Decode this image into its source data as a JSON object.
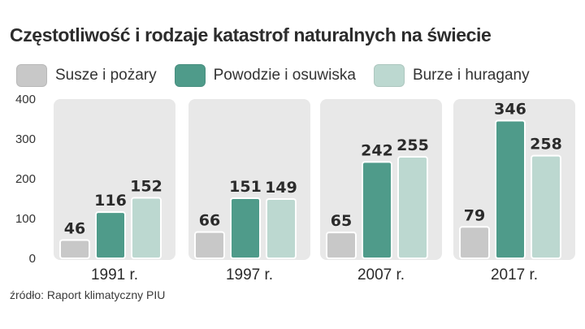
{
  "title": "Częstotliwość i rodzaje katastrof naturalnych na świecie",
  "source": "źródło: Raport klimatyczny PIU",
  "chart_data": {
    "type": "bar",
    "title": "Częstotliwość i rodzaje katastrof naturalnych na świecie",
    "categories": [
      "1991 r.",
      "1997 r.",
      "2007 r.",
      "2017 r."
    ],
    "series": [
      {
        "name": "Susze i pożary",
        "values": [
          46,
          66,
          65,
          79
        ],
        "color": "#c8c8c8"
      },
      {
        "name": "Powodzie i osuwiska",
        "values": [
          116,
          151,
          242,
          346
        ],
        "color": "#4f9b8a"
      },
      {
        "name": "Burze i huragany",
        "values": [
          152,
          149,
          255,
          258
        ],
        "color": "#bcd8d0"
      }
    ],
    "ylim": [
      0,
      400
    ],
    "yticks": [
      "0",
      "100",
      "200",
      "300",
      "400"
    ],
    "xlabel": "",
    "ylabel": "",
    "legend": "top-left",
    "grid": false,
    "data_labels": true,
    "group_background": "#e8e8e8"
  }
}
